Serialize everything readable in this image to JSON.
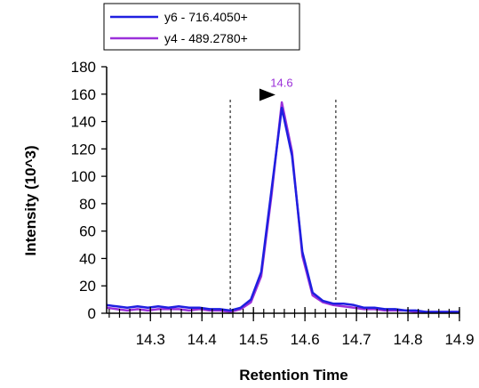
{
  "chart_data": {
    "type": "line",
    "title": "",
    "xlabel": "Retention Time",
    "ylabel": "Intensity (10^3)",
    "xlim": [
      14.215,
      14.9
    ],
    "ylim": [
      0,
      180
    ],
    "x_ticks": [
      "14.3",
      "14.4",
      "14.5",
      "14.6",
      "14.7",
      "14.8",
      "14.9"
    ],
    "y_ticks": [
      "0",
      "20",
      "40",
      "60",
      "80",
      "100",
      "120",
      "140",
      "160",
      "180"
    ],
    "legend_position": "top-left",
    "peak_label": "14.6",
    "peak_apex": {
      "x": 14.56,
      "y": 153
    },
    "integration_boundaries": [
      14.455,
      14.66
    ],
    "colors": {
      "y6": "#1f1fe0",
      "y4": "#9b30d9",
      "boundary": "#000000",
      "axis": "#000000"
    },
    "series": [
      {
        "name": "y6 - 716.4050+",
        "x": [
          14.215,
          14.235,
          14.255,
          14.275,
          14.295,
          14.315,
          14.335,
          14.355,
          14.375,
          14.395,
          14.415,
          14.435,
          14.455,
          14.475,
          14.495,
          14.515,
          14.535,
          14.555,
          14.575,
          14.595,
          14.615,
          14.635,
          14.655,
          14.675,
          14.695,
          14.715,
          14.735,
          14.755,
          14.775,
          14.795,
          14.815,
          14.835,
          14.855,
          14.875,
          14.9
        ],
        "y": [
          6,
          5,
          4,
          5,
          4,
          5,
          4,
          5,
          4,
          4,
          3,
          3,
          2,
          4,
          10,
          30,
          90,
          150,
          115,
          45,
          15,
          9,
          7,
          7,
          6,
          4,
          4,
          3,
          3,
          2,
          2,
          1,
          1,
          1,
          1
        ]
      },
      {
        "name": "y4 - 489.2780+",
        "x": [
          14.215,
          14.235,
          14.255,
          14.275,
          14.295,
          14.315,
          14.335,
          14.355,
          14.375,
          14.395,
          14.415,
          14.435,
          14.455,
          14.475,
          14.495,
          14.515,
          14.535,
          14.555,
          14.575,
          14.595,
          14.615,
          14.635,
          14.655,
          14.675,
          14.695,
          14.715,
          14.735,
          14.755,
          14.775,
          14.795,
          14.815,
          14.835,
          14.855,
          14.875,
          14.9
        ],
        "y": [
          4,
          3,
          2,
          3,
          2,
          3,
          3,
          3,
          2,
          3,
          2,
          2,
          1,
          3,
          8,
          27,
          86,
          154,
          118,
          42,
          13,
          8,
          6,
          5,
          4,
          3,
          3,
          2,
          2,
          2,
          1,
          1,
          1,
          1,
          1
        ]
      }
    ]
  }
}
